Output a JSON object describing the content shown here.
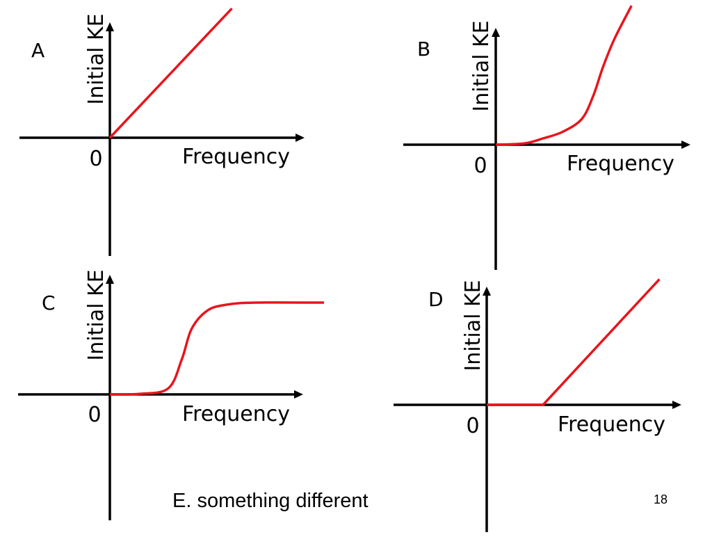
{
  "slide": {
    "option_e": "E. something different",
    "page_number": "18"
  },
  "chart_data": [
    {
      "type": "line",
      "panel": "A",
      "xlabel": "Frequency",
      "ylabel": "Initial KE",
      "origin_label": "0",
      "xlim": [
        0,
        10
      ],
      "ylim": [
        0,
        10
      ],
      "series": [
        {
          "x": [
            0,
            6.5
          ],
          "y": [
            0,
            10.5
          ],
          "color": "#e8141c"
        }
      ]
    },
    {
      "type": "line",
      "panel": "B",
      "xlabel": "Frequency",
      "ylabel": "Initial KE",
      "origin_label": "0",
      "xlim": [
        0,
        10
      ],
      "ylim": [
        0,
        10
      ],
      "series": [
        {
          "x": [
            0,
            1.5,
            2.5,
            3.5,
            4.5,
            5.1,
            5.6,
            6.2,
            7.1
          ],
          "y": [
            0,
            0.1,
            0.5,
            1.0,
            2.0,
            3.8,
            6.0,
            8.2,
            10.8
          ],
          "color": "#e8141c"
        }
      ]
    },
    {
      "type": "line",
      "panel": "C",
      "xlabel": "Frequency",
      "ylabel": "Initial KE",
      "origin_label": "0",
      "xlim": [
        0,
        10
      ],
      "ylim": [
        0,
        10
      ],
      "series": [
        {
          "x": [
            0,
            1.5,
            3.0,
            3.7,
            4.2,
            5.0,
            6.0,
            7.5,
            11.0
          ],
          "y": [
            0,
            0.05,
            0.6,
            3.5,
            6.5,
            8.3,
            8.9,
            9.1,
            9.1
          ],
          "color": "#e8141c"
        }
      ]
    },
    {
      "type": "line",
      "panel": "D",
      "xlabel": "Frequency",
      "ylabel": "Initial KE",
      "origin_label": "0",
      "xlim": [
        0,
        10
      ],
      "ylim": [
        0,
        10
      ],
      "series": [
        {
          "x": [
            0,
            3.0,
            9.2
          ],
          "y": [
            0,
            0,
            10.5
          ],
          "color": "#e8141c"
        }
      ]
    }
  ]
}
